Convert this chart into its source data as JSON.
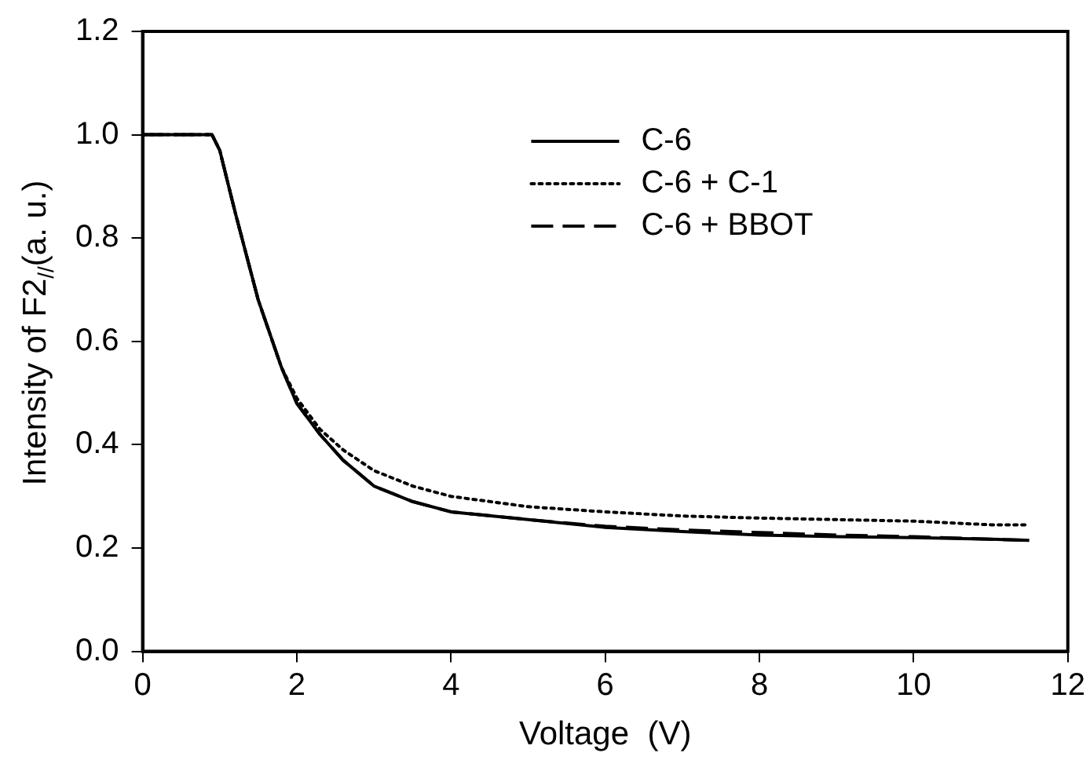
{
  "chart_data": {
    "type": "line",
    "xlabel": "Voltage  (V)",
    "ylabel": "Intensity of F2$_{//}$(a. u.)",
    "xlim": [
      0,
      12
    ],
    "xticks": [
      0,
      2,
      4,
      6,
      8,
      10,
      12
    ],
    "ylim": [
      0,
      1.2
    ],
    "yticks": [
      {
        "value": 0,
        "label": "0.0"
      },
      0.2,
      0.4,
      0.6,
      0.8,
      {
        "value": 1,
        "label": "1.0"
      },
      1.2
    ],
    "grid": false,
    "legend": "top",
    "marker": "none",
    "series": [
      {
        "name": "C-6",
        "color": "#000000",
        "line_style": "solid",
        "x": [
          0,
          0.9,
          1.0,
          1.2,
          1.5,
          1.8,
          2.0,
          2.3,
          2.6,
          3.0,
          3.5,
          4,
          5,
          6,
          7,
          8,
          9,
          10,
          11,
          11.5
        ],
        "values": [
          1.0,
          1.0,
          0.97,
          0.85,
          0.68,
          0.55,
          0.48,
          0.42,
          0.37,
          0.32,
          0.29,
          0.27,
          0.255,
          0.24,
          0.232,
          0.225,
          0.222,
          0.22,
          0.217,
          0.215
        ]
      },
      {
        "name": "C-6 + C-1",
        "color": "#000000",
        "line_style": "dotted",
        "x": [
          0,
          0.9,
          1.0,
          1.2,
          1.5,
          1.8,
          2.0,
          2.3,
          2.6,
          3.0,
          3.5,
          4,
          5,
          6,
          7,
          8,
          9,
          10,
          11,
          11.5
        ],
        "values": [
          1.0,
          1.0,
          0.97,
          0.85,
          0.68,
          0.55,
          0.49,
          0.43,
          0.39,
          0.35,
          0.32,
          0.3,
          0.28,
          0.27,
          0.262,
          0.258,
          0.255,
          0.252,
          0.245,
          0.245
        ]
      },
      {
        "name": "C-6 + BBOT",
        "color": "#000000",
        "line_style": "dashed",
        "x": [
          0,
          0.9,
          1.0,
          1.2,
          1.5,
          1.8,
          2.0,
          2.3,
          2.6,
          3.0,
          3.5,
          4,
          5,
          6,
          7,
          8,
          9,
          10,
          11,
          11.5
        ],
        "values": [
          1.0,
          1.0,
          0.97,
          0.85,
          0.68,
          0.55,
          0.48,
          0.42,
          0.37,
          0.32,
          0.29,
          0.27,
          0.255,
          0.242,
          0.235,
          0.23,
          0.225,
          0.222,
          0.217,
          0.215
        ]
      }
    ]
  }
}
